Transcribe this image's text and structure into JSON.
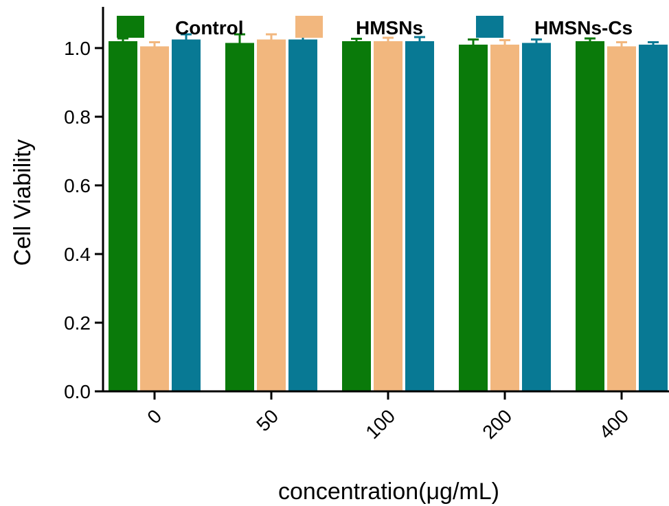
{
  "chart_data": {
    "type": "bar",
    "title": "",
    "xlabel": "concentration(μg/mL)",
    "ylabel": "Cell Viability",
    "ylim": [
      0,
      1.12
    ],
    "yticks": [
      "0.0",
      "0.2",
      "0.4",
      "0.6",
      "0.8",
      "1.0"
    ],
    "categories": [
      "0",
      "50",
      "100",
      "200",
      "400"
    ],
    "legend_position": "top",
    "series": [
      {
        "name": "Control",
        "color": "#0a7a0a",
        "values": [
          1.02,
          1.015,
          1.02,
          1.01,
          1.02
        ],
        "errors": [
          0.008,
          0.025,
          0.007,
          0.015,
          0.008
        ]
      },
      {
        "name": "HMSNs",
        "color": "#f2b77e",
        "values": [
          1.005,
          1.025,
          1.02,
          1.01,
          1.005
        ],
        "errors": [
          0.012,
          0.015,
          0.01,
          0.013,
          0.012
        ]
      },
      {
        "name": "HMSNs-Cs",
        "color": "#087994",
        "values": [
          1.025,
          1.025,
          1.02,
          1.015,
          1.01
        ],
        "errors": [
          0.015,
          0.012,
          0.012,
          0.01,
          0.007
        ]
      }
    ]
  }
}
